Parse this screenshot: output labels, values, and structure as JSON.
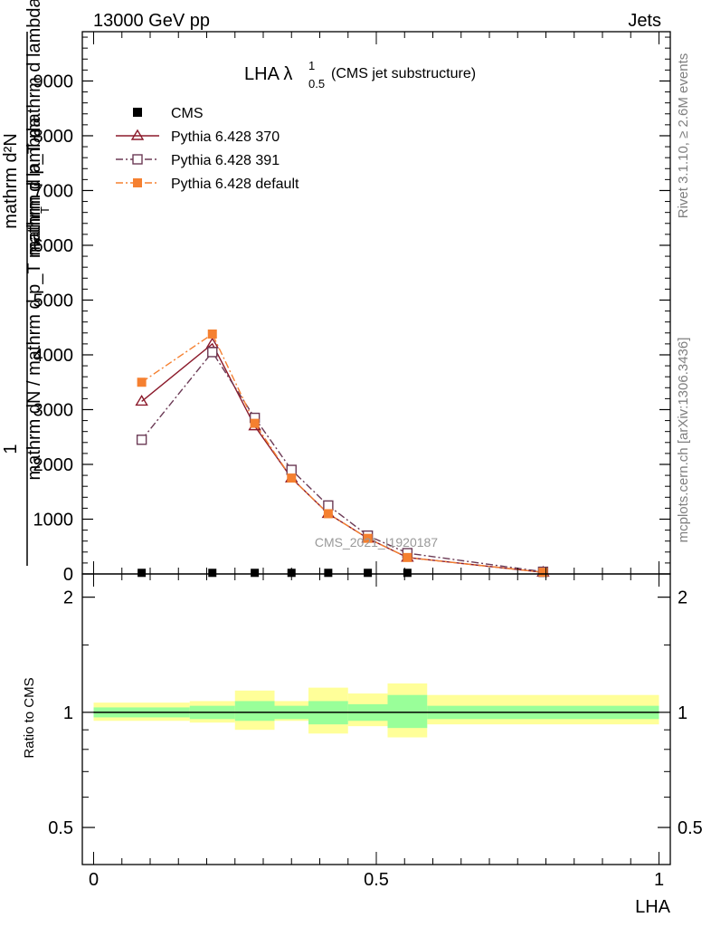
{
  "header": {
    "left": "13000 GeV pp",
    "right": "Jets"
  },
  "side_labels": {
    "rivet": "Rivet 3.1.10, ≥ 2.6M events",
    "mcplots": "mcplots.cern.ch [arXiv:1306.3436]"
  },
  "watermark": "CMS_2021_I1920187",
  "ratio_ylabel": "Ratio to CMS",
  "chart_data": {
    "type": "line",
    "title_main": "LHA λ",
    "title_sup": "1",
    "title_sub": "0.5",
    "title_rest": "(CMS jet substructure)",
    "xlabel": "LHA",
    "ylabel_numerator": "1",
    "ylabel_denominator": "mathrm dN / mathrm d p_T mathrm d lambda",
    "ylabel_overlap_1": "mathrm d²N",
    "ylabel_overlap_2": "mathrm d p_T mathrm d lambda",
    "ylabel_overlap_sub": "T",
    "xlim": [
      -0.02,
      1.02
    ],
    "ylim": [
      0,
      9900
    ],
    "x_ticks": [
      0,
      0.5,
      1
    ],
    "x_tick_labels": [
      "0",
      "0.5",
      "1"
    ],
    "y_ticks": [
      0,
      1000,
      2000,
      3000,
      4000,
      5000,
      6000,
      7000,
      8000,
      9000
    ],
    "y_tick_labels": [
      "0",
      "1000",
      "2000",
      "3000",
      "4000",
      "5000",
      "6000",
      "7000",
      "8000",
      "9000"
    ],
    "bin_edges": [
      0,
      0.17,
      0.25,
      0.32,
      0.38,
      0.45,
      0.52,
      0.59,
      1.0
    ],
    "x": [
      0.085,
      0.21,
      0.285,
      0.35,
      0.415,
      0.485,
      0.555,
      0.795
    ],
    "series": [
      {
        "name": "CMS",
        "color": "#000000",
        "marker": "filled-square",
        "line": "none",
        "values": [
          20,
          20,
          20,
          20,
          20,
          20,
          20,
          20
        ]
      },
      {
        "name": "Pythia 6.428 370",
        "color": "#8b1a2b",
        "marker": "open-triangle",
        "line": "solid",
        "values": [
          3150,
          4200,
          2700,
          1750,
          1100,
          650,
          300,
          30
        ]
      },
      {
        "name": "Pythia 6.428 391",
        "color": "#6b3a55",
        "marker": "open-square",
        "line": "dash-dot",
        "values": [
          2450,
          4050,
          2850,
          1900,
          1250,
          700,
          380,
          40
        ]
      },
      {
        "name": "Pythia 6.428 default",
        "color": "#f58030",
        "marker": "filled-square",
        "line": "dash-dot",
        "values": [
          3500,
          4380,
          2750,
          1750,
          1100,
          650,
          300,
          30
        ]
      }
    ],
    "ratio": {
      "ylim": [
        0.4,
        2.3
      ],
      "y_ticks": [
        0.5,
        1,
        2
      ],
      "y_tick_labels": [
        "0.5",
        "1",
        "2"
      ],
      "band_green": [
        [
          0.97,
          1.03
        ],
        [
          0.96,
          1.04
        ],
        [
          0.95,
          1.07
        ],
        [
          0.96,
          1.04
        ],
        [
          0.93,
          1.07
        ],
        [
          0.95,
          1.05
        ],
        [
          0.91,
          1.11
        ],
        [
          0.96,
          1.04
        ]
      ],
      "band_yellow": [
        [
          0.95,
          1.06
        ],
        [
          0.94,
          1.07
        ],
        [
          0.9,
          1.14
        ],
        [
          0.95,
          1.07
        ],
        [
          0.88,
          1.16
        ],
        [
          0.92,
          1.12
        ],
        [
          0.86,
          1.19
        ],
        [
          0.93,
          1.11
        ]
      ]
    }
  }
}
